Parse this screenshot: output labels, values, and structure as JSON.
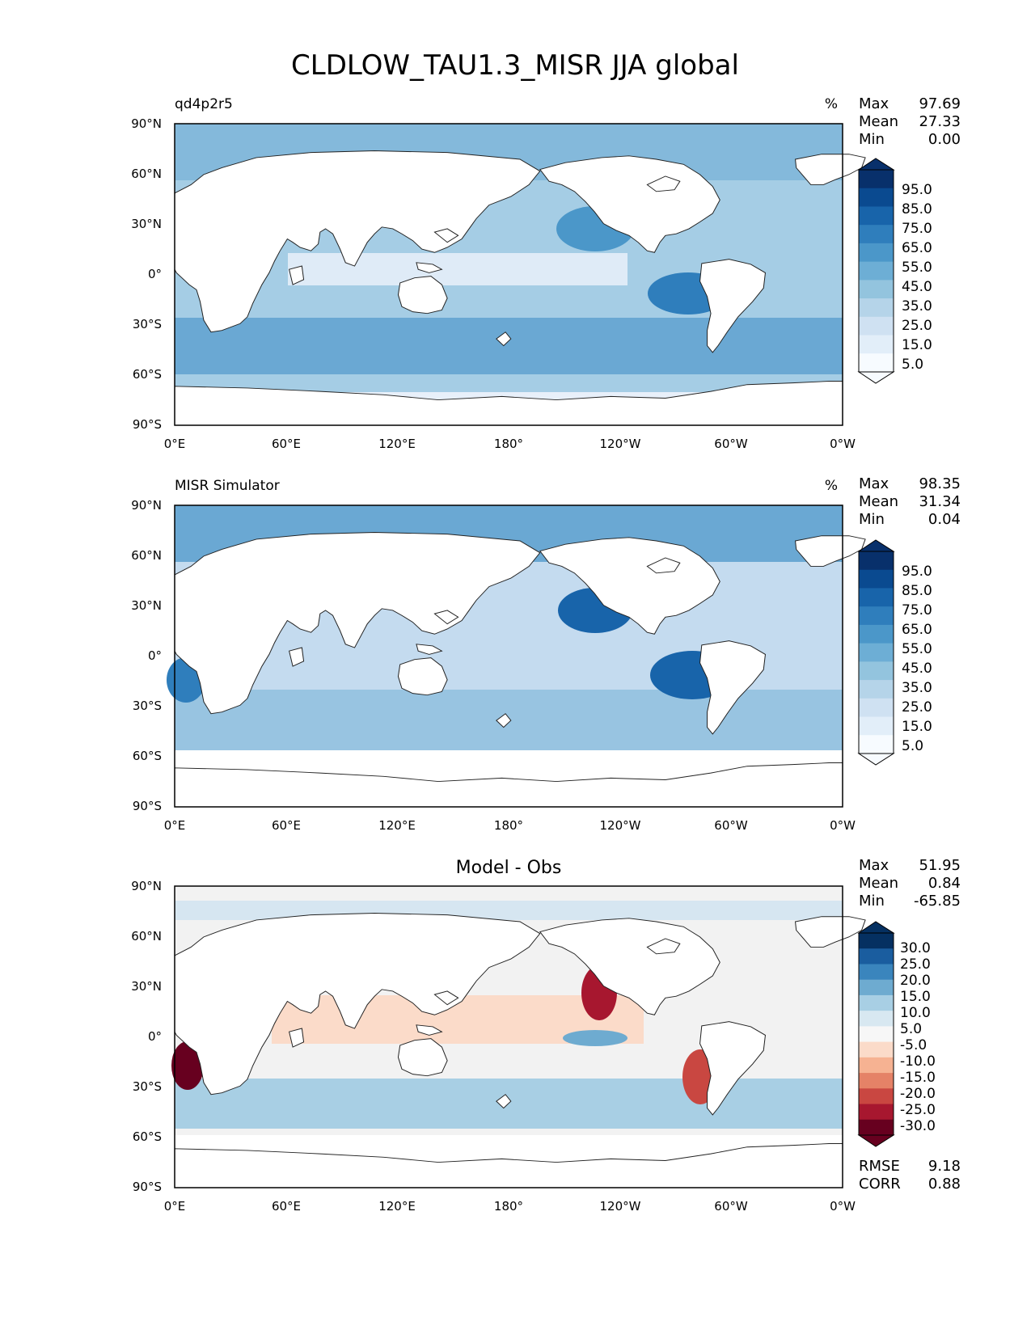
{
  "figure": {
    "title": "CLDLOW_TAU1.3_MISR JJA global"
  },
  "axes": {
    "lon_ticks": [
      "0°E",
      "60°E",
      "120°E",
      "180°",
      "120°W",
      "60°W",
      "0°W"
    ],
    "lat_ticks": [
      "90°N",
      "60°N",
      "30°N",
      "0°",
      "30°S",
      "60°S",
      "90°S"
    ]
  },
  "colors": {
    "seq_scale": [
      "#f7fbff",
      "#e2eef9",
      "#cfe1f2",
      "#b5d4e9",
      "#93c4de",
      "#6daed5",
      "#4b97c9",
      "#2f7ebc",
      "#1864aa",
      "#0a4a90",
      "#08306b"
    ],
    "div_scale": [
      "#67001f",
      "#a7172f",
      "#c94741",
      "#e58267",
      "#f6b292",
      "#fbdbc9",
      "#f7f7f7",
      "#d8e8f1",
      "#a8cfe4",
      "#6eabd0",
      "#3a85bd",
      "#1a5d9f",
      "#053061"
    ],
    "coast": "#222222"
  },
  "chart_data": [
    {
      "type": "heatmap",
      "panel": "test",
      "title": "qd4p2r5",
      "title_pos": "left",
      "units": "%",
      "xlabel": "",
      "ylabel": "",
      "xlim": [
        0,
        360
      ],
      "ylim": [
        -90,
        90
      ],
      "stats": [
        {
          "label": "Max",
          "value": "97.69"
        },
        {
          "label": "Mean",
          "value": "27.33"
        },
        {
          "label": "Min",
          "value": "0.00"
        }
      ],
      "colorbar": {
        "levels": [
          "95.0",
          "85.0",
          "75.0",
          "65.0",
          "55.0",
          "45.0",
          "35.0",
          "25.0",
          "15.0",
          "5.0"
        ],
        "extend": "both",
        "scale": "sequential"
      }
    },
    {
      "type": "heatmap",
      "panel": "reference",
      "title": "MISR Simulator",
      "title_pos": "left",
      "units": "%",
      "xlabel": "",
      "ylabel": "",
      "xlim": [
        0,
        360
      ],
      "ylim": [
        -90,
        90
      ],
      "stats": [
        {
          "label": "Max",
          "value": "98.35"
        },
        {
          "label": "Mean",
          "value": "31.34"
        },
        {
          "label": "Min",
          "value": "0.04"
        }
      ],
      "colorbar": {
        "levels": [
          "95.0",
          "85.0",
          "75.0",
          "65.0",
          "55.0",
          "45.0",
          "35.0",
          "25.0",
          "15.0",
          "5.0"
        ],
        "extend": "both",
        "scale": "sequential"
      }
    },
    {
      "type": "heatmap",
      "panel": "difference",
      "title": "Model - Obs",
      "title_pos": "center",
      "units": "",
      "xlabel": "",
      "ylabel": "",
      "xlim": [
        0,
        360
      ],
      "ylim": [
        -90,
        90
      ],
      "stats": [
        {
          "label": "Max",
          "value": "51.95"
        },
        {
          "label": "Mean",
          "value": "0.84"
        },
        {
          "label": "Min",
          "value": "-65.85"
        }
      ],
      "extra_stats": [
        {
          "label": "RMSE",
          "value": "9.18"
        },
        {
          "label": "CORR",
          "value": "0.88"
        }
      ],
      "colorbar": {
        "levels": [
          "30.0",
          "25.0",
          "20.0",
          "15.0",
          "10.0",
          "5.0",
          "-5.0",
          "-10.0",
          "-15.0",
          "-20.0",
          "-25.0",
          "-30.0"
        ],
        "extend": "both",
        "scale": "diverging"
      }
    }
  ]
}
